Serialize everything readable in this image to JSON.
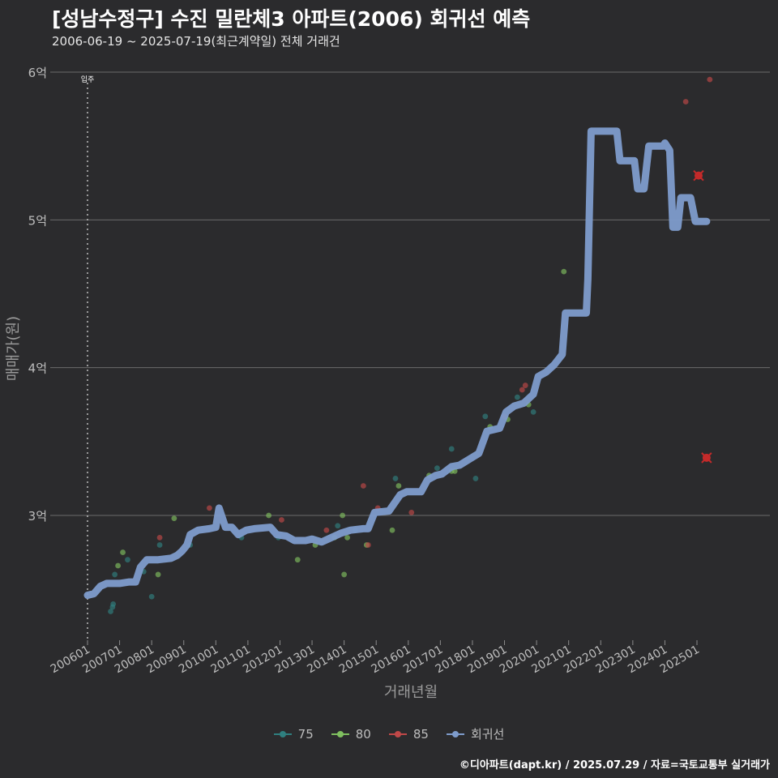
{
  "title": "[성남수정구] 수진 밀란체3 아파트(2006) 회귀선 예측",
  "subtitle": "2006-06-19 ~ 2025-07-19(최근계약일) 전체 거래건",
  "credit": "©디아파트(dapt.kr) / 2025.07.29 / 자료=국토교통부 실거래가",
  "colors": {
    "background": "#2b2b2d",
    "grid": "#6b6b6b",
    "regression": "#7e9ccc",
    "s75": "#2f7f7f",
    "s80": "#7fbf5f",
    "s85": "#c04848",
    "highlight": "#c42a2a"
  },
  "chart_data": {
    "type": "scatter",
    "xlabel": "거래년월",
    "ylabel": "매매가(원)",
    "ylim": [
      2.2,
      6.1
    ],
    "y_ticks": [
      {
        "value": 3,
        "label": "3억"
      },
      {
        "value": 4,
        "label": "4억"
      },
      {
        "value": 5,
        "label": "5억"
      },
      {
        "value": 6,
        "label": "6억"
      }
    ],
    "x_ticks": [
      {
        "value": 2006.0,
        "label": "200601"
      },
      {
        "value": 2007.0,
        "label": "200701"
      },
      {
        "value": 2008.0,
        "label": "200801"
      },
      {
        "value": 2009.0,
        "label": "200901"
      },
      {
        "value": 2010.0,
        "label": "201001"
      },
      {
        "value": 2011.0,
        "label": "201101"
      },
      {
        "value": 2012.0,
        "label": "201201"
      },
      {
        "value": 2013.0,
        "label": "201301"
      },
      {
        "value": 2014.0,
        "label": "201401"
      },
      {
        "value": 2015.0,
        "label": "201501"
      },
      {
        "value": 2016.0,
        "label": "201601"
      },
      {
        "value": 2017.0,
        "label": "201701"
      },
      {
        "value": 2018.0,
        "label": "201801"
      },
      {
        "value": 2019.0,
        "label": "201901"
      },
      {
        "value": 2020.0,
        "label": "202001"
      },
      {
        "value": 2021.0,
        "label": "202101"
      },
      {
        "value": 2022.0,
        "label": "202201"
      },
      {
        "value": 2023.0,
        "label": "202301"
      },
      {
        "value": 2024.0,
        "label": "202401"
      },
      {
        "value": 2025.0,
        "label": "202501"
      }
    ],
    "annotation": {
      "x": 2006.0,
      "label": "입주"
    },
    "series": [
      {
        "name": "75",
        "color": "#2f7f7f",
        "points": [
          [
            2006.72,
            2.35
          ],
          [
            2006.78,
            2.38
          ],
          [
            2006.8,
            2.4
          ],
          [
            2006.85,
            2.6
          ],
          [
            2007.25,
            2.7
          ],
          [
            2007.75,
            2.62
          ],
          [
            2008.0,
            2.45
          ],
          [
            2008.25,
            2.8
          ],
          [
            2009.2,
            2.8
          ],
          [
            2010.8,
            2.85
          ],
          [
            2011.95,
            2.85
          ],
          [
            2013.8,
            2.93
          ],
          [
            2014.35,
            2.9
          ],
          [
            2015.6,
            3.25
          ],
          [
            2016.9,
            3.32
          ],
          [
            2017.35,
            3.45
          ],
          [
            2018.1,
            3.25
          ],
          [
            2018.4,
            3.67
          ],
          [
            2019.4,
            3.8
          ],
          [
            2019.9,
            3.7
          ]
        ]
      },
      {
        "name": "80",
        "color": "#7fbf5f",
        "points": [
          [
            2006.95,
            2.66
          ],
          [
            2007.1,
            2.75
          ],
          [
            2008.2,
            2.6
          ],
          [
            2008.7,
            2.98
          ],
          [
            2011.65,
            3.0
          ],
          [
            2012.55,
            2.7
          ],
          [
            2013.1,
            2.8
          ],
          [
            2013.7,
            2.85
          ],
          [
            2013.95,
            3.0
          ],
          [
            2014.0,
            2.6
          ],
          [
            2014.1,
            2.85
          ],
          [
            2014.7,
            2.8
          ],
          [
            2015.5,
            2.9
          ],
          [
            2015.7,
            3.2
          ],
          [
            2016.65,
            3.27
          ],
          [
            2017.35,
            3.3
          ],
          [
            2017.45,
            3.3
          ],
          [
            2018.55,
            3.6
          ],
          [
            2019.1,
            3.65
          ],
          [
            2019.75,
            3.75
          ],
          [
            2020.85,
            4.65
          ]
        ]
      },
      {
        "name": "85",
        "color": "#c04848",
        "points": [
          [
            2008.25,
            2.85
          ],
          [
            2009.8,
            3.05
          ],
          [
            2012.05,
            2.97
          ],
          [
            2013.45,
            2.9
          ],
          [
            2014.6,
            3.2
          ],
          [
            2014.75,
            2.8
          ],
          [
            2015.05,
            3.05
          ],
          [
            2016.1,
            3.02
          ],
          [
            2019.0,
            3.67
          ],
          [
            2019.55,
            3.85
          ],
          [
            2019.65,
            3.88
          ],
          [
            2024.65,
            5.8
          ],
          [
            2025.4,
            5.95
          ]
        ]
      },
      {
        "name": "회귀선",
        "color": "#7e9ccc",
        "points": [
          [
            2006.0,
            2.46
          ],
          [
            2006.2,
            2.47
          ],
          [
            2006.4,
            2.52
          ],
          [
            2006.6,
            2.54
          ],
          [
            2007.0,
            2.54
          ],
          [
            2007.3,
            2.55
          ],
          [
            2007.5,
            2.55
          ],
          [
            2007.65,
            2.65
          ],
          [
            2007.85,
            2.7
          ],
          [
            2008.2,
            2.7
          ],
          [
            2008.6,
            2.71
          ],
          [
            2008.8,
            2.73
          ],
          [
            2008.95,
            2.76
          ],
          [
            2009.1,
            2.8
          ],
          [
            2009.2,
            2.87
          ],
          [
            2009.45,
            2.9
          ],
          [
            2009.8,
            2.91
          ],
          [
            2010.0,
            2.92
          ],
          [
            2010.1,
            3.05
          ],
          [
            2010.3,
            2.92
          ],
          [
            2010.5,
            2.92
          ],
          [
            2010.7,
            2.87
          ],
          [
            2010.95,
            2.9
          ],
          [
            2011.2,
            2.91
          ],
          [
            2011.7,
            2.92
          ],
          [
            2011.9,
            2.87
          ],
          [
            2012.2,
            2.86
          ],
          [
            2012.45,
            2.83
          ],
          [
            2012.8,
            2.83
          ],
          [
            2013.0,
            2.84
          ],
          [
            2013.3,
            2.82
          ],
          [
            2013.6,
            2.85
          ],
          [
            2013.9,
            2.88
          ],
          [
            2014.2,
            2.9
          ],
          [
            2014.6,
            2.91
          ],
          [
            2014.75,
            2.91
          ],
          [
            2014.95,
            3.02
          ],
          [
            2015.4,
            3.03
          ],
          [
            2015.75,
            3.14
          ],
          [
            2015.95,
            3.16
          ],
          [
            2016.4,
            3.16
          ],
          [
            2016.6,
            3.24
          ],
          [
            2016.85,
            3.27
          ],
          [
            2017.05,
            3.28
          ],
          [
            2017.35,
            3.33
          ],
          [
            2017.6,
            3.34
          ],
          [
            2017.9,
            3.38
          ],
          [
            2018.2,
            3.42
          ],
          [
            2018.45,
            3.57
          ],
          [
            2018.85,
            3.59
          ],
          [
            2019.05,
            3.7
          ],
          [
            2019.3,
            3.74
          ],
          [
            2019.6,
            3.76
          ],
          [
            2019.9,
            3.82
          ],
          [
            2020.05,
            3.94
          ],
          [
            2020.3,
            3.97
          ],
          [
            2020.55,
            4.02
          ],
          [
            2020.8,
            4.09
          ],
          [
            2020.9,
            4.37
          ],
          [
            2021.2,
            4.37
          ],
          [
            2021.55,
            4.37
          ],
          [
            2021.6,
            4.6
          ],
          [
            2021.7,
            5.6
          ],
          [
            2021.95,
            5.6
          ],
          [
            2022.5,
            5.6
          ],
          [
            2022.6,
            5.4
          ],
          [
            2022.9,
            5.4
          ],
          [
            2023.05,
            5.4
          ],
          [
            2023.15,
            5.21
          ],
          [
            2023.35,
            5.21
          ],
          [
            2023.5,
            5.5
          ],
          [
            2023.7,
            5.5
          ],
          [
            2023.95,
            5.5
          ],
          [
            2024.0,
            5.52
          ],
          [
            2024.15,
            5.47
          ],
          [
            2024.25,
            4.95
          ],
          [
            2024.4,
            4.95
          ],
          [
            2024.5,
            5.15
          ],
          [
            2024.8,
            5.15
          ],
          [
            2024.95,
            4.99
          ],
          [
            2025.3,
            4.99
          ]
        ]
      }
    ],
    "highlighted_points": [
      [
        2025.05,
        5.3
      ],
      [
        2025.3,
        3.39
      ]
    ],
    "legend": {
      "position": "bottom",
      "entries": [
        "75",
        "80",
        "85",
        "회귀선"
      ]
    }
  }
}
